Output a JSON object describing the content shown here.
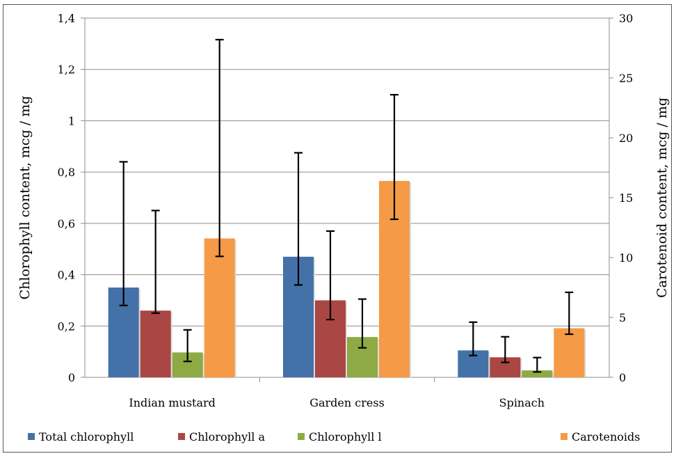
{
  "chart_data": {
    "type": "bar",
    "categories": [
      "Indian mustard",
      "Garden cress",
      "Spinach"
    ],
    "ylabel_left": "Chlorophyll content, mcg / mg",
    "ylabel_right": "Carotenoid content, mcg / mg",
    "ylim_left": [
      0,
      1.4
    ],
    "ylim_right": [
      0,
      30
    ],
    "yticks_left": [
      "0",
      "0,2",
      "0,4",
      "0,6",
      "0,8",
      "1",
      "1,2",
      "1,4"
    ],
    "yticks_right": [
      "0",
      "5",
      "10",
      "15",
      "20",
      "25",
      "30"
    ],
    "grid": true,
    "legend_position": "bottom",
    "series": [
      {
        "name": "Total chlorophyll",
        "axis": "left",
        "color": "#4472A8",
        "values": [
          0.35,
          0.47,
          0.105
        ],
        "err_low": [
          0.28,
          0.36,
          0.085
        ],
        "err_high": [
          0.84,
          0.875,
          0.215
        ]
      },
      {
        "name": "Chlorophyll a",
        "axis": "left",
        "color": "#AA4643",
        "values": [
          0.26,
          0.3,
          0.078
        ],
        "err_low": [
          0.25,
          0.225,
          0.058
        ],
        "err_high": [
          0.65,
          0.57,
          0.158
        ]
      },
      {
        "name": "Chlorophyll b",
        "legend_label": "Chlorophyll l",
        "axis": "left",
        "color": "#8DAA45",
        "values": [
          0.097,
          0.157,
          0.027
        ],
        "err_low": [
          0.062,
          0.115,
          0.021
        ],
        "err_high": [
          0.185,
          0.305,
          0.077
        ]
      },
      {
        "name": "Carotenoids",
        "axis": "right",
        "color": "#F59A47",
        "values": [
          11.6,
          16.4,
          4.1
        ],
        "err_low": [
          10.1,
          13.2,
          3.6
        ],
        "err_high": [
          28.2,
          23.6,
          7.1
        ]
      }
    ]
  }
}
